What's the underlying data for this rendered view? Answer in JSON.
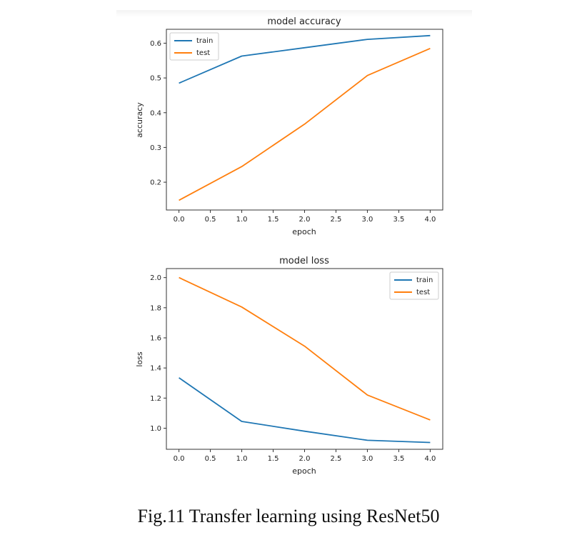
{
  "caption": "Fig.11 Transfer learning using ResNet50",
  "colors": {
    "train": "#1f77b4",
    "test": "#ff7f0e"
  },
  "chart_data": [
    {
      "type": "line",
      "title": "model accuracy",
      "xlabel": "epoch",
      "ylabel": "accuracy",
      "x": [
        0,
        1,
        2,
        3,
        4
      ],
      "xlim": [
        -0.2,
        4.2
      ],
      "ylim": [
        0.12,
        0.64
      ],
      "xticks": [
        0.0,
        0.5,
        1.0,
        1.5,
        2.0,
        2.5,
        3.0,
        3.5,
        4.0
      ],
      "xtick_labels": [
        "0.0",
        "0.5",
        "1.0",
        "1.5",
        "2.0",
        "2.5",
        "3.0",
        "3.5",
        "4.0"
      ],
      "yticks": [
        0.2,
        0.3,
        0.4,
        0.5,
        0.6
      ],
      "ytick_labels": [
        "0.2",
        "0.3",
        "0.4",
        "0.5",
        "0.6"
      ],
      "legend_position": "top-left",
      "series": [
        {
          "name": "train",
          "values": [
            0.485,
            0.563,
            0.587,
            0.611,
            0.622
          ]
        },
        {
          "name": "test",
          "values": [
            0.148,
            0.245,
            0.367,
            0.507,
            0.585
          ]
        }
      ]
    },
    {
      "type": "line",
      "title": "model loss",
      "xlabel": "epoch",
      "ylabel": "loss",
      "x": [
        0,
        1,
        2,
        3,
        4
      ],
      "xlim": [
        -0.2,
        4.2
      ],
      "ylim": [
        0.86,
        2.06
      ],
      "xticks": [
        0.0,
        0.5,
        1.0,
        1.5,
        2.0,
        2.5,
        3.0,
        3.5,
        4.0
      ],
      "xtick_labels": [
        "0.0",
        "0.5",
        "1.0",
        "1.5",
        "2.0",
        "2.5",
        "3.0",
        "3.5",
        "4.0"
      ],
      "yticks": [
        1.0,
        1.2,
        1.4,
        1.6,
        1.8,
        2.0
      ],
      "ytick_labels": [
        "1.0",
        "1.2",
        "1.4",
        "1.6",
        "1.8",
        "2.0"
      ],
      "legend_position": "top-right",
      "series": [
        {
          "name": "train",
          "values": [
            1.335,
            1.045,
            0.98,
            0.92,
            0.905
          ]
        },
        {
          "name": "test",
          "values": [
            2.0,
            1.805,
            1.545,
            1.22,
            1.055
          ]
        }
      ]
    }
  ]
}
